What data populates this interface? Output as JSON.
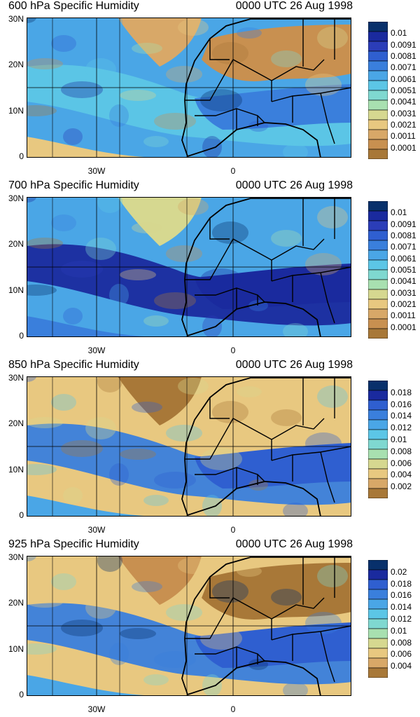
{
  "panels": [
    {
      "title": "600 hPa Specific Humidity",
      "time": "0000 UTC 26 Aug 1998",
      "ylabels": [
        "30N",
        "20N",
        "10N",
        "0"
      ],
      "xlabels": [
        "30W",
        "0"
      ],
      "colorbar": {
        "labels": [
          "0.01",
          "0.0091",
          "0.0081",
          "0.0071",
          "0.0061",
          "0.0051",
          "0.0041",
          "0.0031",
          "0.0021",
          "0.0011",
          "0.0001"
        ],
        "colors": [
          "#08306b",
          "#1a2a9e",
          "#2b3db8",
          "#2f5fd0",
          "#3a7fdc",
          "#4aa6e6",
          "#5cc6e6",
          "#7fd8d0",
          "#a8e0b0",
          "#d6d890",
          "#e8c880",
          "#d8a868",
          "#c89050",
          "#a87838"
        ]
      },
      "style": "dry"
    },
    {
      "title": "700 hPa Specific Humidity",
      "time": "0000 UTC 26 Aug 1998",
      "ylabels": [
        "30N",
        "20N",
        "10N",
        "0"
      ],
      "xlabels": [
        "30W",
        "0"
      ],
      "colorbar": {
        "labels": [
          "0.01",
          "0.0091",
          "0.0081",
          "0.0071",
          "0.0061",
          "0.0051",
          "0.0041",
          "0.0031",
          "0.0021",
          "0.0011",
          "0.0001"
        ],
        "colors": [
          "#08306b",
          "#1a2a9e",
          "#2b3db8",
          "#2f5fd0",
          "#3a7fdc",
          "#4aa6e6",
          "#5cc6e6",
          "#7fd8d0",
          "#a8e0b0",
          "#d6d890",
          "#e8c880",
          "#d8a868",
          "#c89050",
          "#a87838"
        ]
      },
      "style": "wet"
    },
    {
      "title": "850 hPa Specific Humidity",
      "time": "0000 UTC 26 Aug 1998",
      "ylabels": [
        "30N",
        "20N",
        "10N",
        "0"
      ],
      "xlabels": [
        "30W",
        "0"
      ],
      "colorbar": {
        "labels": [
          "0.018",
          "0.016",
          "0.014",
          "0.012",
          "0.01",
          "0.008",
          "0.006",
          "0.004",
          "0.002"
        ],
        "colors": [
          "#08306b",
          "#1a2a9e",
          "#2f5fd0",
          "#3a7fdc",
          "#4aa6e6",
          "#5cc6e6",
          "#7fd8d0",
          "#a8e0b0",
          "#d6d890",
          "#e8c880",
          "#d8a868",
          "#a87838"
        ]
      },
      "style": "mid"
    },
    {
      "title": "925 hPa Specific Humidity",
      "time": "0000 UTC 26 Aug 1998",
      "ylabels": [
        "30N",
        "20N",
        "10N",
        "0"
      ],
      "xlabels": [
        "30W",
        "0"
      ],
      "colorbar": {
        "labels": [
          "0.02",
          "0.018",
          "0.016",
          "0.014",
          "0.012",
          "0.01",
          "0.008",
          "0.006",
          "0.004"
        ],
        "colors": [
          "#08306b",
          "#1a2a9e",
          "#2f5fd0",
          "#3a7fdc",
          "#4aa6e6",
          "#5cc6e6",
          "#7fd8d0",
          "#a8e0b0",
          "#d6d890",
          "#e8c880",
          "#d8a868",
          "#a87838"
        ]
      },
      "style": "low"
    }
  ]
}
